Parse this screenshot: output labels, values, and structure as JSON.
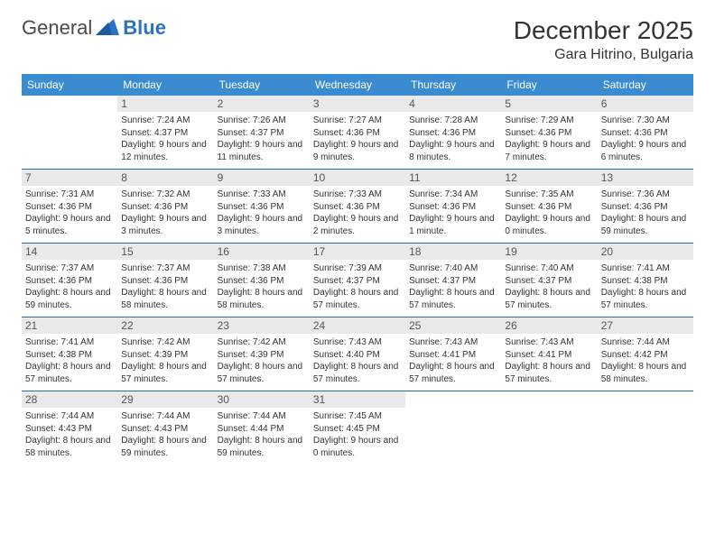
{
  "logo": {
    "word1": "General",
    "word2": "Blue"
  },
  "title": "December 2025",
  "location": "Gara Hitrino, Bulgaria",
  "colors": {
    "header_bg": "#3b8bd0",
    "header_fg": "#ffffff",
    "daynum_bg": "#e9e9e9",
    "row_border": "#2b6aa8",
    "logo_blue": "#2b72c4"
  },
  "dayNames": [
    "Sunday",
    "Monday",
    "Tuesday",
    "Wednesday",
    "Thursday",
    "Friday",
    "Saturday"
  ],
  "weeks": [
    [
      {
        "n": "",
        "sr": "",
        "ss": "",
        "dl": ""
      },
      {
        "n": "1",
        "sr": "Sunrise: 7:24 AM",
        "ss": "Sunset: 4:37 PM",
        "dl": "Daylight: 9 hours and 12 minutes."
      },
      {
        "n": "2",
        "sr": "Sunrise: 7:26 AM",
        "ss": "Sunset: 4:37 PM",
        "dl": "Daylight: 9 hours and 11 minutes."
      },
      {
        "n": "3",
        "sr": "Sunrise: 7:27 AM",
        "ss": "Sunset: 4:36 PM",
        "dl": "Daylight: 9 hours and 9 minutes."
      },
      {
        "n": "4",
        "sr": "Sunrise: 7:28 AM",
        "ss": "Sunset: 4:36 PM",
        "dl": "Daylight: 9 hours and 8 minutes."
      },
      {
        "n": "5",
        "sr": "Sunrise: 7:29 AM",
        "ss": "Sunset: 4:36 PM",
        "dl": "Daylight: 9 hours and 7 minutes."
      },
      {
        "n": "6",
        "sr": "Sunrise: 7:30 AM",
        "ss": "Sunset: 4:36 PM",
        "dl": "Daylight: 9 hours and 6 minutes."
      }
    ],
    [
      {
        "n": "7",
        "sr": "Sunrise: 7:31 AM",
        "ss": "Sunset: 4:36 PM",
        "dl": "Daylight: 9 hours and 5 minutes."
      },
      {
        "n": "8",
        "sr": "Sunrise: 7:32 AM",
        "ss": "Sunset: 4:36 PM",
        "dl": "Daylight: 9 hours and 3 minutes."
      },
      {
        "n": "9",
        "sr": "Sunrise: 7:33 AM",
        "ss": "Sunset: 4:36 PM",
        "dl": "Daylight: 9 hours and 3 minutes."
      },
      {
        "n": "10",
        "sr": "Sunrise: 7:33 AM",
        "ss": "Sunset: 4:36 PM",
        "dl": "Daylight: 9 hours and 2 minutes."
      },
      {
        "n": "11",
        "sr": "Sunrise: 7:34 AM",
        "ss": "Sunset: 4:36 PM",
        "dl": "Daylight: 9 hours and 1 minute."
      },
      {
        "n": "12",
        "sr": "Sunrise: 7:35 AM",
        "ss": "Sunset: 4:36 PM",
        "dl": "Daylight: 9 hours and 0 minutes."
      },
      {
        "n": "13",
        "sr": "Sunrise: 7:36 AM",
        "ss": "Sunset: 4:36 PM",
        "dl": "Daylight: 8 hours and 59 minutes."
      }
    ],
    [
      {
        "n": "14",
        "sr": "Sunrise: 7:37 AM",
        "ss": "Sunset: 4:36 PM",
        "dl": "Daylight: 8 hours and 59 minutes."
      },
      {
        "n": "15",
        "sr": "Sunrise: 7:37 AM",
        "ss": "Sunset: 4:36 PM",
        "dl": "Daylight: 8 hours and 58 minutes."
      },
      {
        "n": "16",
        "sr": "Sunrise: 7:38 AM",
        "ss": "Sunset: 4:36 PM",
        "dl": "Daylight: 8 hours and 58 minutes."
      },
      {
        "n": "17",
        "sr": "Sunrise: 7:39 AM",
        "ss": "Sunset: 4:37 PM",
        "dl": "Daylight: 8 hours and 57 minutes."
      },
      {
        "n": "18",
        "sr": "Sunrise: 7:40 AM",
        "ss": "Sunset: 4:37 PM",
        "dl": "Daylight: 8 hours and 57 minutes."
      },
      {
        "n": "19",
        "sr": "Sunrise: 7:40 AM",
        "ss": "Sunset: 4:37 PM",
        "dl": "Daylight: 8 hours and 57 minutes."
      },
      {
        "n": "20",
        "sr": "Sunrise: 7:41 AM",
        "ss": "Sunset: 4:38 PM",
        "dl": "Daylight: 8 hours and 57 minutes."
      }
    ],
    [
      {
        "n": "21",
        "sr": "Sunrise: 7:41 AM",
        "ss": "Sunset: 4:38 PM",
        "dl": "Daylight: 8 hours and 57 minutes."
      },
      {
        "n": "22",
        "sr": "Sunrise: 7:42 AM",
        "ss": "Sunset: 4:39 PM",
        "dl": "Daylight: 8 hours and 57 minutes."
      },
      {
        "n": "23",
        "sr": "Sunrise: 7:42 AM",
        "ss": "Sunset: 4:39 PM",
        "dl": "Daylight: 8 hours and 57 minutes."
      },
      {
        "n": "24",
        "sr": "Sunrise: 7:43 AM",
        "ss": "Sunset: 4:40 PM",
        "dl": "Daylight: 8 hours and 57 minutes."
      },
      {
        "n": "25",
        "sr": "Sunrise: 7:43 AM",
        "ss": "Sunset: 4:41 PM",
        "dl": "Daylight: 8 hours and 57 minutes."
      },
      {
        "n": "26",
        "sr": "Sunrise: 7:43 AM",
        "ss": "Sunset: 4:41 PM",
        "dl": "Daylight: 8 hours and 57 minutes."
      },
      {
        "n": "27",
        "sr": "Sunrise: 7:44 AM",
        "ss": "Sunset: 4:42 PM",
        "dl": "Daylight: 8 hours and 58 minutes."
      }
    ],
    [
      {
        "n": "28",
        "sr": "Sunrise: 7:44 AM",
        "ss": "Sunset: 4:43 PM",
        "dl": "Daylight: 8 hours and 58 minutes."
      },
      {
        "n": "29",
        "sr": "Sunrise: 7:44 AM",
        "ss": "Sunset: 4:43 PM",
        "dl": "Daylight: 8 hours and 59 minutes."
      },
      {
        "n": "30",
        "sr": "Sunrise: 7:44 AM",
        "ss": "Sunset: 4:44 PM",
        "dl": "Daylight: 8 hours and 59 minutes."
      },
      {
        "n": "31",
        "sr": "Sunrise: 7:45 AM",
        "ss": "Sunset: 4:45 PM",
        "dl": "Daylight: 9 hours and 0 minutes."
      },
      {
        "n": "",
        "sr": "",
        "ss": "",
        "dl": ""
      },
      {
        "n": "",
        "sr": "",
        "ss": "",
        "dl": ""
      },
      {
        "n": "",
        "sr": "",
        "ss": "",
        "dl": ""
      }
    ]
  ]
}
